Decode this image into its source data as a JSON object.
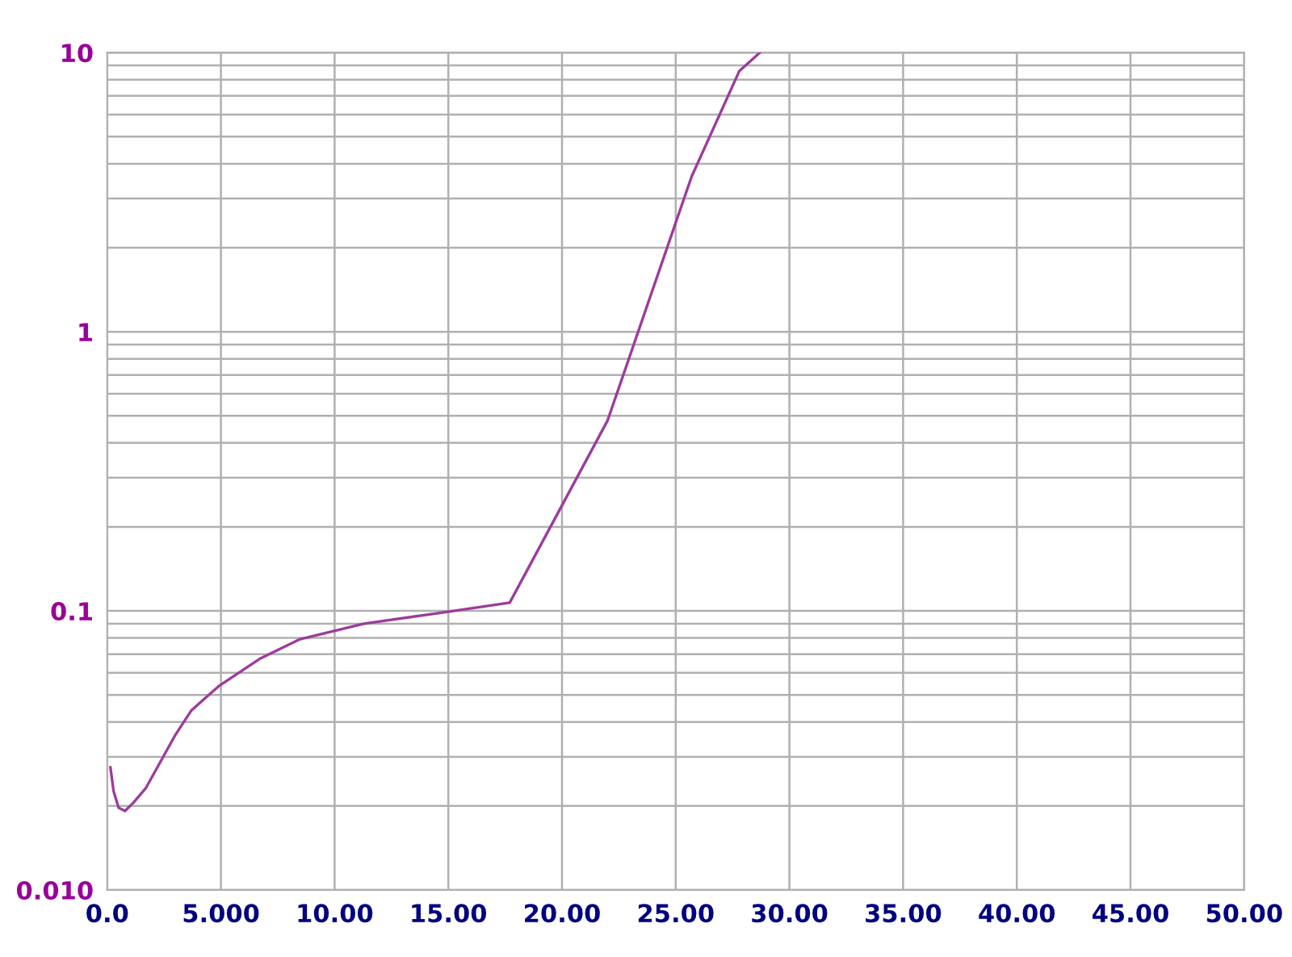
{
  "chart_data": {
    "type": "line",
    "log": "y",
    "grid": true,
    "marker": "none",
    "line_style": "solid",
    "x": [
      0.14,
      0.28,
      0.5,
      0.78,
      1.14,
      1.7,
      2.4,
      3.0,
      3.7,
      4.9,
      6.7,
      8.45,
      11.3,
      14.5,
      17.7,
      22.0,
      25.7,
      27.8,
      28.7
    ],
    "series": [
      {
        "color": "#9b3c9b",
        "values": [
          0.0275,
          0.0226,
          0.0197,
          0.0192,
          0.0205,
          0.0232,
          0.0294,
          0.036,
          0.044,
          0.0537,
          0.0673,
          0.079,
          0.09,
          0.098,
          0.107,
          0.48,
          3.6,
          8.6,
          10
        ]
      }
    ],
    "xlim": [
      0,
      50
    ],
    "ylim": [
      0.01,
      10
    ],
    "xticks": [
      {
        "value": 0,
        "label": "0.0"
      },
      {
        "value": 5,
        "label": "5.000"
      },
      {
        "value": 10,
        "label": "10.00"
      },
      {
        "value": 15,
        "label": "15.00"
      },
      {
        "value": 20,
        "label": "20.00"
      },
      {
        "value": 25,
        "label": "25.00"
      },
      {
        "value": 30,
        "label": "30.00"
      },
      {
        "value": 35,
        "label": "35.00"
      },
      {
        "value": 40,
        "label": "40.00"
      },
      {
        "value": 45,
        "label": "45.00"
      },
      {
        "value": 50,
        "label": "50.00"
      }
    ],
    "yticks": [
      {
        "value": 0.01,
        "label": "0.010"
      },
      0.1,
      1,
      10
    ]
  }
}
